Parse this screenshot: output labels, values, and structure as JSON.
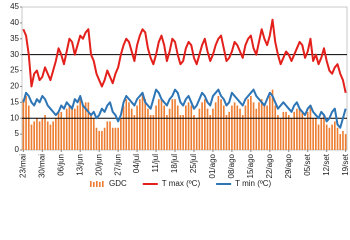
{
  "chart_data": {
    "type": "combo",
    "categories": [
      "23/mai",
      null,
      null,
      null,
      null,
      null,
      null,
      "30/mai",
      null,
      null,
      null,
      null,
      null,
      null,
      "06/jun",
      null,
      null,
      null,
      null,
      null,
      null,
      "13/jun",
      null,
      null,
      null,
      null,
      null,
      null,
      "20/jun",
      null,
      null,
      null,
      null,
      null,
      null,
      "27/jun",
      null,
      null,
      null,
      null,
      null,
      null,
      "04/jul",
      null,
      null,
      null,
      null,
      null,
      null,
      "11/jul",
      null,
      null,
      null,
      null,
      null,
      null,
      "18/jul",
      null,
      null,
      null,
      null,
      null,
      null,
      "25/jul",
      null,
      null,
      null,
      null,
      null,
      null,
      "01/ago",
      null,
      null,
      null,
      null,
      null,
      null,
      "08/ago",
      null,
      null,
      null,
      null,
      null,
      null,
      "15/ago",
      null,
      null,
      null,
      null,
      null,
      null,
      "22/ago",
      null,
      null,
      null,
      null,
      null,
      null,
      "29/ago",
      null,
      null,
      null,
      null,
      null,
      null,
      "05/set",
      null,
      null,
      null,
      null,
      null,
      null,
      "12/set",
      null,
      null,
      null,
      null,
      null,
      null,
      "19/set"
    ],
    "series": [
      {
        "name": "GDC",
        "kind": "bar",
        "color": "#ed7d31",
        "values": [
          16,
          17,
          14,
          8,
          9,
          10,
          9,
          10,
          11,
          9,
          8,
          9,
          10,
          12,
          12,
          10,
          13,
          14,
          14,
          13,
          14,
          16,
          14,
          15,
          15,
          11,
          10,
          7,
          6,
          6,
          7,
          9,
          9,
          7,
          7,
          7,
          10,
          14,
          16,
          15,
          13,
          11,
          14,
          16,
          18,
          16,
          13,
          11,
          11,
          14,
          16,
          16,
          14,
          11,
          13,
          16,
          16,
          14,
          11,
          11,
          14,
          15,
          14,
          11,
          10,
          13,
          15,
          16,
          13,
          11,
          13,
          15,
          17,
          16,
          14,
          11,
          12,
          14,
          15,
          14,
          13,
          11,
          14,
          16,
          17,
          15,
          13,
          15,
          16,
          14,
          14,
          17,
          19,
          14,
          11,
          10,
          12,
          12,
          11,
          10,
          12,
          13,
          13,
          12,
          10,
          12,
          14,
          10,
          10,
          8,
          10,
          11,
          8,
          7,
          8,
          9,
          7,
          5,
          6,
          5
        ]
      },
      {
        "name": "T max (ºC)",
        "kind": "line",
        "color": "#e3201b",
        "values": [
          38,
          36,
          30,
          20,
          24,
          25,
          22,
          23,
          26,
          24,
          22,
          25,
          28,
          32,
          30,
          27,
          31,
          35,
          34,
          30,
          33,
          36,
          35,
          37,
          38,
          30,
          28,
          24,
          22,
          20,
          22,
          25,
          23,
          21,
          24,
          26,
          30,
          33,
          35,
          34,
          31,
          28,
          33,
          36,
          38,
          37,
          32,
          29,
          27,
          30,
          34,
          36,
          33,
          28,
          31,
          35,
          34,
          30,
          27,
          28,
          32,
          34,
          33,
          29,
          27,
          30,
          33,
          35,
          31,
          28,
          30,
          33,
          35,
          36,
          32,
          28,
          29,
          31,
          34,
          33,
          31,
          29,
          33,
          35,
          36,
          32,
          30,
          34,
          38,
          35,
          33,
          36,
          41,
          34,
          30,
          27,
          29,
          31,
          30,
          28,
          30,
          32,
          34,
          33,
          29,
          31,
          35,
          28,
          30,
          27,
          29,
          32,
          28,
          25,
          24,
          26,
          27,
          24,
          22,
          18
        ]
      },
      {
        "name": "T min (ºC)",
        "kind": "line",
        "color": "#2e75b6",
        "values": [
          15,
          18,
          17,
          15,
          14,
          16,
          15,
          17,
          16,
          14,
          13,
          12,
          11,
          12,
          14,
          13,
          15,
          14,
          13,
          16,
          15,
          17,
          14,
          13,
          12,
          11,
          12,
          10,
          11,
          13,
          12,
          14,
          15,
          12,
          11,
          9,
          11,
          15,
          17,
          16,
          15,
          14,
          16,
          17,
          18,
          15,
          14,
          13,
          16,
          19,
          18,
          16,
          15,
          14,
          16,
          17,
          19,
          18,
          15,
          14,
          16,
          17,
          15,
          13,
          14,
          16,
          18,
          17,
          15,
          14,
          17,
          18,
          19,
          17,
          16,
          14,
          15,
          18,
          17,
          16,
          15,
          14,
          16,
          17,
          18,
          19,
          17,
          16,
          15,
          14,
          16,
          18,
          17,
          15,
          13,
          14,
          15,
          14,
          13,
          12,
          14,
          15,
          13,
          12,
          11,
          13,
          14,
          12,
          11,
          10,
          12,
          11,
          9,
          10,
          12,
          13,
          8,
          7,
          10,
          13
        ]
      }
    ],
    "ylim": [
      0,
      45
    ],
    "yticks": [
      0,
      5,
      10,
      15,
      20,
      25,
      30,
      35,
      40,
      45
    ],
    "reference_lines": [
      10,
      30
    ],
    "legend": "bottom"
  }
}
